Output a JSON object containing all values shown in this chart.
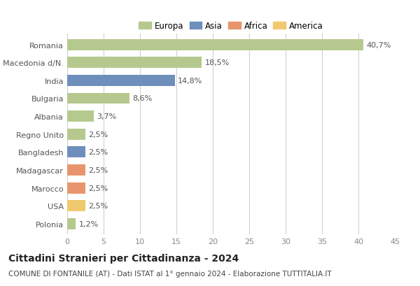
{
  "countries": [
    "Romania",
    "Macedonia d/N.",
    "India",
    "Bulgaria",
    "Albania",
    "Regno Unito",
    "Bangladesh",
    "Madagascar",
    "Marocco",
    "USA",
    "Polonia"
  ],
  "values": [
    40.7,
    18.5,
    14.8,
    8.6,
    3.7,
    2.5,
    2.5,
    2.5,
    2.5,
    2.5,
    1.2
  ],
  "labels": [
    "40,7%",
    "18,5%",
    "14,8%",
    "8,6%",
    "3,7%",
    "2,5%",
    "2,5%",
    "2,5%",
    "2,5%",
    "2,5%",
    "1,2%"
  ],
  "colors": [
    "#b5c98e",
    "#b5c98e",
    "#6e8fbb",
    "#b5c98e",
    "#b5c98e",
    "#b5c98e",
    "#6e8fbb",
    "#e8956d",
    "#e8956d",
    "#f0c96e",
    "#b5c98e"
  ],
  "legend_labels": [
    "Europa",
    "Asia",
    "Africa",
    "America"
  ],
  "legend_colors": [
    "#b5c98e",
    "#6e8fbb",
    "#e8956d",
    "#f0c96e"
  ],
  "xlim": [
    0,
    45
  ],
  "xticks": [
    0,
    5,
    10,
    15,
    20,
    25,
    30,
    35,
    40,
    45
  ],
  "title": "Cittadini Stranieri per Cittadinanza - 2024",
  "subtitle": "COMUNE DI FONTANILE (AT) - Dati ISTAT al 1° gennaio 2024 - Elaborazione TUTTITALIA.IT",
  "bg_color": "#ffffff",
  "grid_color": "#d0d0d0",
  "title_fontsize": 10,
  "subtitle_fontsize": 7.5,
  "tick_fontsize": 8,
  "label_fontsize": 8,
  "legend_fontsize": 8.5
}
